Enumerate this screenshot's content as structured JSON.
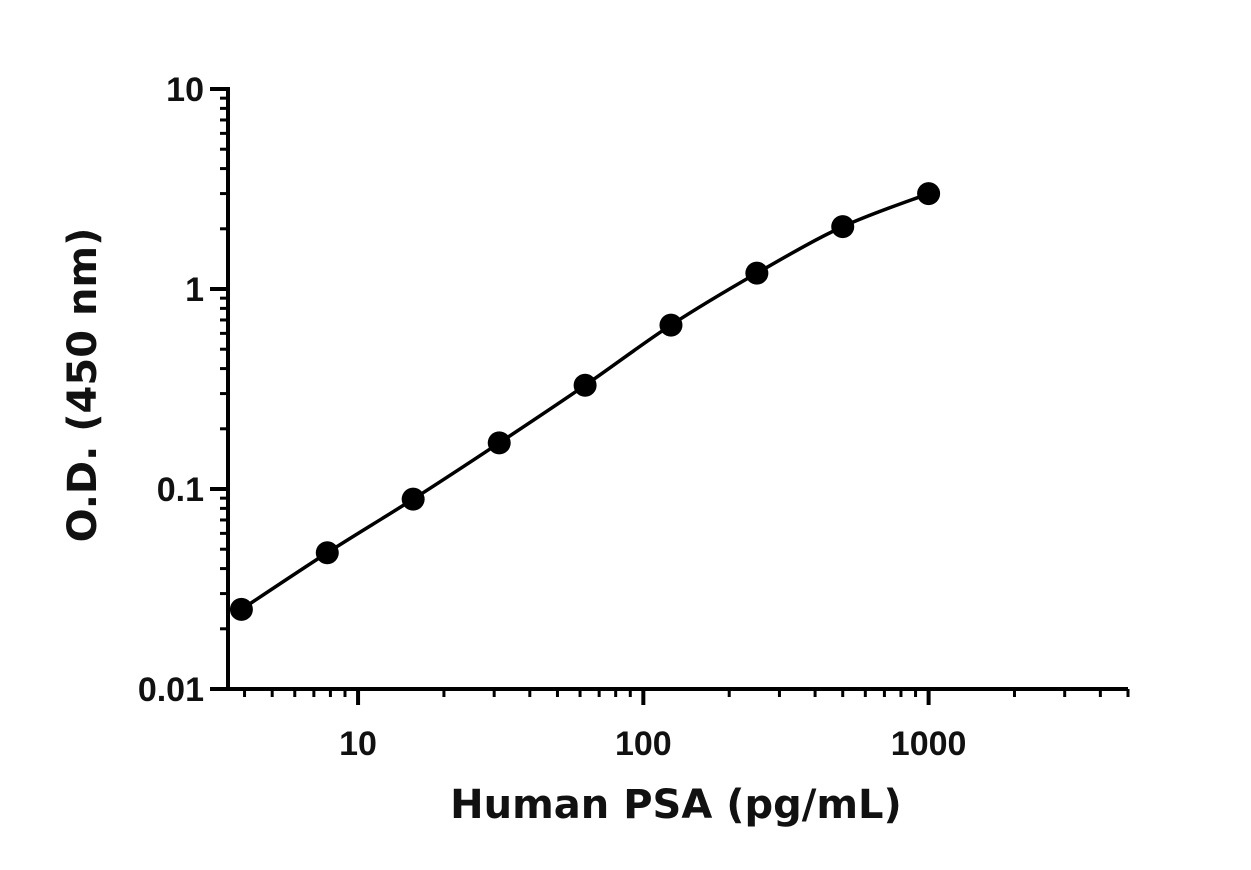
{
  "chart_data": {
    "type": "scatter",
    "title": "",
    "xlabel": "Human PSA (pg/mL)",
    "ylabel": "O.D. (450 nm)",
    "xscale": "log",
    "yscale": "log",
    "xlim": [
      3.5,
      5000
    ],
    "ylim": [
      0.01,
      10
    ],
    "xticks": [
      {
        "value": 10,
        "label": "10"
      },
      {
        "value": 100,
        "label": "100"
      },
      {
        "value": 1000,
        "label": "1000"
      }
    ],
    "yticks": [
      {
        "value": 0.01,
        "label": "0.01"
      },
      {
        "value": 0.1,
        "label": "0.1"
      },
      {
        "value": 1,
        "label": "1"
      },
      {
        "value": 10,
        "label": "10"
      }
    ],
    "grid": false,
    "legend": "none",
    "series": [
      {
        "x": [
          3.9,
          7.8,
          15.6,
          31.25,
          62.5,
          125,
          250,
          500,
          1000
        ],
        "y": [
          0.025,
          0.048,
          0.089,
          0.17,
          0.33,
          0.66,
          1.2,
          2.05,
          3.0
        ],
        "marker": "filled-circle",
        "fit_line": true,
        "color": "#000000"
      }
    ]
  }
}
